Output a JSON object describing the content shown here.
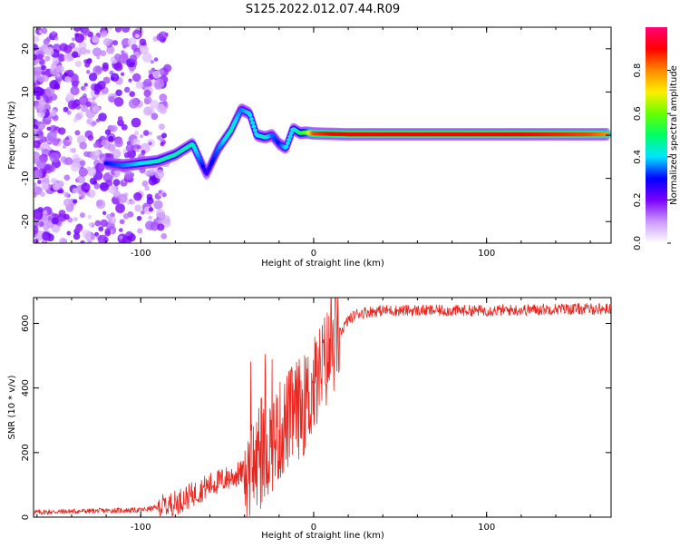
{
  "title": "S125.2022.012.07.44.R09",
  "chart_data": [
    {
      "type": "heatmap",
      "xlabel": "Height of straight line (km)",
      "ylabel": "Frequency (Hz)",
      "xlim": [
        -162,
        172
      ],
      "ylim": [
        -25,
        25
      ],
      "xticks": [
        -100,
        0,
        100
      ],
      "yticks": [
        -20,
        -10,
        0,
        10,
        20
      ],
      "grid": false,
      "colorbar": {
        "label": "Normalized spectral amplitude",
        "range": [
          0,
          1
        ],
        "ticks": [
          "0.0",
          "0.2",
          "0.4",
          "0.6",
          "0.8"
        ],
        "colors": [
          "#ffffff",
          "#cc99ff",
          "#7b00ff",
          "#0000ff",
          "#00e5ff",
          "#00ff66",
          "#66ff00",
          "#ffee00",
          "#ff8800",
          "#ff0000",
          "#ff0077"
        ]
      },
      "ridge": {
        "x": [
          -120,
          -110,
          -100,
          -90,
          -80,
          -70,
          -62,
          -55,
          -48,
          -42,
          -37,
          -33,
          -28,
          -24,
          -20,
          -16,
          -12,
          -8,
          -4,
          0,
          10,
          20,
          40,
          60,
          80,
          100,
          120,
          140,
          160,
          170
        ],
        "y": [
          -6.5,
          -7,
          -6.5,
          -6,
          -4.5,
          -2,
          -9,
          -3,
          1,
          6,
          5,
          0,
          -0.5,
          0,
          -2,
          -3,
          1.5,
          0.5,
          0.6,
          0.4,
          0.3,
          0.2,
          0.2,
          0.2,
          0.2,
          0.2,
          0.2,
          0.2,
          0.2,
          0.2
        ],
        "amplitude": [
          0.3,
          0.35,
          0.4,
          0.45,
          0.45,
          0.45,
          0.25,
          0.35,
          0.45,
          0.35,
          0.4,
          0.4,
          0.45,
          0.35,
          0.3,
          0.4,
          0.4,
          0.5,
          0.6,
          0.85,
          0.9,
          0.9,
          0.9,
          0.9,
          0.9,
          0.9,
          0.9,
          0.88,
          0.85,
          0.8
        ]
      }
    },
    {
      "type": "line",
      "xlabel": "Height of straight line (km)",
      "ylabel": "SNR (10 * v/v)",
      "xlim": [
        -162,
        172
      ],
      "ylim": [
        0,
        680
      ],
      "xticks": [
        -100,
        0,
        100
      ],
      "yticks": [
        0,
        200,
        400,
        600
      ],
      "grid": false,
      "series": [
        {
          "color": "#e8261f",
          "x": [
            -162,
            -140,
            -120,
            -100,
            -90,
            -80,
            -70,
            -60,
            -50,
            -40,
            -30,
            -25,
            -20,
            -15,
            -10,
            -5,
            0,
            5,
            10,
            15,
            20,
            25,
            30,
            40,
            60,
            80,
            100,
            120,
            140,
            160,
            172
          ],
          "y": [
            15,
            18,
            20,
            22,
            30,
            45,
            70,
            100,
            120,
            140,
            180,
            230,
            260,
            300,
            330,
            350,
            400,
            460,
            520,
            570,
            610,
            630,
            635,
            640,
            640,
            640,
            640,
            642,
            645,
            645,
            645
          ]
        }
      ]
    }
  ]
}
